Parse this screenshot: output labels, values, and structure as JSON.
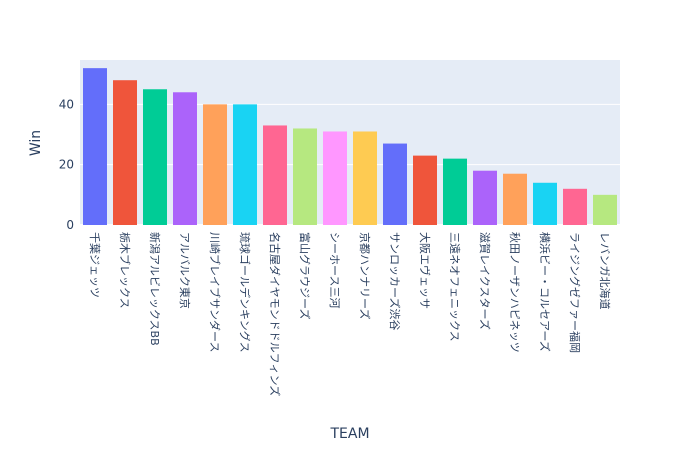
{
  "chart_data": {
    "type": "bar",
    "xlabel": "TEAM",
    "ylabel": "Win",
    "ylim": [
      0,
      54.7
    ],
    "yticks": [
      0,
      20,
      40
    ],
    "grid": true,
    "categories": [
      "千葉ジェッツ",
      "栃木ブレックス",
      "新潟アルビレックスBB",
      "アルバルク東京",
      "川崎ブレイブサンダース",
      "琉球ゴールデンキングス",
      "名古屋ダイヤモンドドルフィンズ",
      "富山グラウジーズ",
      "シーホース三河",
      "京都ハンナリーズ",
      "サンロッカーズ渋谷",
      "大阪エヴェッサ",
      "三遠ネオフェニックス",
      "滋賀レイクスターズ",
      "秋田ノーザンハピネッツ",
      "横浜ビー・コルセアーズ",
      "ライジングゼファー福岡",
      "レバンガ北海道"
    ],
    "values": [
      52,
      48,
      45,
      44,
      40,
      40,
      33,
      32,
      31,
      31,
      27,
      23,
      22,
      18,
      17,
      14,
      12,
      10
    ],
    "colors": [
      "#636efa",
      "#EF553B",
      "#00cc96",
      "#ab63fa",
      "#FFA15A",
      "#19d3f3",
      "#FF6692",
      "#B6E880",
      "#FF97FF",
      "#FECB52",
      "#636efa",
      "#EF553B",
      "#00cc96",
      "#ab63fa",
      "#FFA15A",
      "#19d3f3",
      "#FF6692",
      "#B6E880"
    ],
    "plot_bg": "#E5ECF6",
    "grid_color": "#ffffff",
    "text_color": "#2a3f5f"
  }
}
